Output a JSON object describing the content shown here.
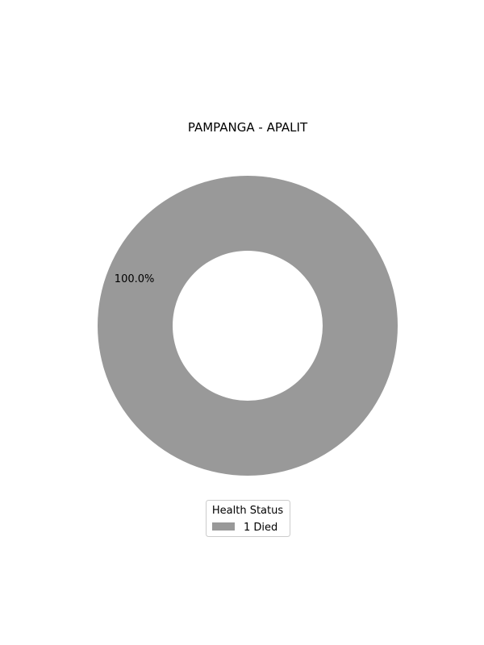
{
  "chart_data": {
    "type": "pie",
    "title": "PAMPANGA - APALIT",
    "slices": [
      {
        "label": "Died",
        "count": "1",
        "value": 1,
        "percent_label": "100.0%",
        "color": "#999999"
      }
    ],
    "legend": {
      "title": "Health Status",
      "placement": "bottom-center"
    }
  }
}
